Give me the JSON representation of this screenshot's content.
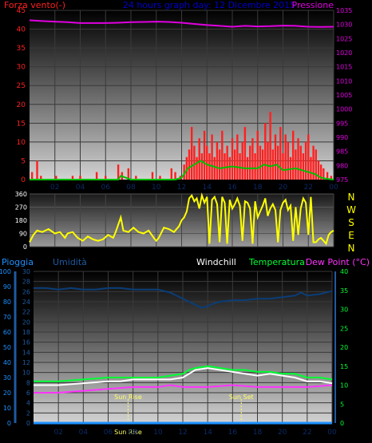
{
  "colors": {
    "wind": "#ff2020",
    "gust_line": "#00c000",
    "pressure": "#e000e0",
    "title": "#0000cc",
    "direction": "#ffff00",
    "rain": "#1e90ff",
    "humidity": "#0a3d78",
    "windchill": "#ffffff",
    "temperature": "#00ff33",
    "dewpoint": "#ff33ff",
    "sun": "#ffff66",
    "axis_text_left_top": "#ff2020",
    "axis_text_right_top": "#e000e0",
    "axis_text_left_bottom": "#1e90ff",
    "axis_text_left_bottom2": "#1e5aa0",
    "axis_text_right_bottom": "#00ff33"
  },
  "chart_data": [
    {
      "type": "line",
      "title": "24 hours graph day: 12 Dicembre 2015",
      "left_label": "Forza vento(-)",
      "right_label": "Pressione",
      "x_ticks": [
        "02",
        "04",
        "06",
        "08",
        "10",
        "12",
        "14",
        "16",
        "18",
        "20",
        "22",
        "00"
      ],
      "y_left_ticks": [
        "0",
        "5",
        "10",
        "15",
        "20",
        "25",
        "30",
        "35",
        "40",
        "45"
      ],
      "y_left_lim": [
        0,
        45
      ],
      "y_right_ticks": [
        "975",
        "980",
        "985",
        "990",
        "995",
        "1000",
        "1005",
        "1010",
        "1015",
        "1020",
        "1025",
        "1030",
        "1035"
      ],
      "y_right_lim": [
        975,
        1035
      ],
      "x_lim": [
        0,
        24
      ],
      "series": [
        {
          "kind": "bars",
          "color_key": "wind",
          "x": [
            0.2,
            0.6,
            0.9,
            1.6,
            2.1,
            2.8,
            3.4,
            4.0,
            4.7,
            5.3,
            6.0,
            6.7,
            7.0,
            7.3,
            7.8,
            8.4,
            9.0,
            9.7,
            10.3,
            10.9,
            11.2,
            11.5,
            11.9,
            12.2,
            12.4,
            12.6,
            12.8,
            13.0,
            13.2,
            13.4,
            13.6,
            13.8,
            14.0,
            14.2,
            14.4,
            14.6,
            14.8,
            15.0,
            15.2,
            15.4,
            15.6,
            15.8,
            16.0,
            16.2,
            16.4,
            16.6,
            16.8,
            17.0,
            17.2,
            17.4,
            17.6,
            17.8,
            18.0,
            18.2,
            18.4,
            18.6,
            18.8,
            19.0,
            19.2,
            19.4,
            19.6,
            19.8,
            20.0,
            20.2,
            20.4,
            20.6,
            20.8,
            21.0,
            21.2,
            21.4,
            21.6,
            21.8,
            22.0,
            22.2,
            22.4,
            22.6,
            22.8,
            23.0,
            23.2,
            23.5,
            23.8
          ],
          "values": [
            2,
            5,
            1,
            0,
            1,
            0,
            1,
            1,
            0,
            2,
            1,
            0,
            4,
            2,
            3,
            1,
            0,
            2,
            1,
            0,
            3,
            2,
            1,
            4,
            6,
            8,
            14,
            9,
            6,
            11,
            7,
            13,
            9,
            7,
            12,
            6,
            10,
            8,
            13,
            7,
            9,
            6,
            11,
            8,
            12,
            7,
            10,
            14,
            6,
            9,
            11,
            7,
            13,
            9,
            8,
            15,
            10,
            18,
            8,
            12,
            9,
            14,
            7,
            12,
            10,
            6,
            13,
            8,
            11,
            9,
            7,
            10,
            12,
            6,
            9,
            8,
            5,
            4,
            3,
            2,
            1
          ]
        },
        {
          "kind": "line",
          "color_key": "gust_line",
          "x": [
            0,
            2,
            4,
            6,
            7,
            7.2,
            8,
            10,
            11,
            11.5,
            12,
            12.5,
            13,
            13.5,
            14,
            14.5,
            15,
            16,
            17,
            18,
            18.5,
            19,
            19.5,
            20,
            21,
            22,
            22.5,
            23,
            23.5,
            24
          ],
          "values": [
            0,
            0,
            0,
            0,
            0,
            1,
            0,
            0,
            0,
            0,
            0.5,
            3,
            4,
            5,
            4,
            3.5,
            3,
            3.5,
            3,
            3,
            4,
            3.5,
            4,
            2.5,
            3,
            2,
            1.5,
            0.5,
            0.2,
            0
          ]
        },
        {
          "kind": "line",
          "axis": "right",
          "color_key": "pressure",
          "x": [
            0,
            1,
            2,
            3,
            4,
            5,
            6,
            7,
            8,
            9,
            10,
            11,
            12,
            13,
            14,
            15,
            16,
            17,
            18,
            19,
            20,
            21,
            22,
            23,
            24
          ],
          "values": [
            1031.5,
            1031.2,
            1031,
            1030.8,
            1030.5,
            1030.5,
            1030.5,
            1030.6,
            1030.8,
            1030.9,
            1031,
            1030.9,
            1030.6,
            1030.2,
            1029.8,
            1029.5,
            1029.2,
            1029.5,
            1029.3,
            1029.4,
            1029.6,
            1029.5,
            1029.2,
            1029.1,
            1029.2
          ]
        }
      ]
    },
    {
      "type": "line",
      "title": "",
      "x_ticks": [],
      "y_left_ticks": [
        "0",
        "90",
        "180",
        "270",
        "360"
      ],
      "y_left_lim": [
        0,
        360
      ],
      "right_letters": [
        "N",
        "W",
        "S",
        "E",
        "N"
      ],
      "x_lim": [
        0,
        24
      ],
      "series": [
        {
          "kind": "line",
          "color_key": "direction",
          "x": [
            0,
            0.3,
            0.6,
            1,
            1.5,
            2,
            2.4,
            2.8,
            3,
            3.4,
            3.8,
            4.2,
            4.6,
            5,
            5.4,
            5.8,
            6.2,
            6.6,
            6.8,
            7,
            7.2,
            7.4,
            7.8,
            8.2,
            8.6,
            9,
            9.4,
            9.8,
            10,
            10.2,
            10.6,
            11,
            11.4,
            11.8,
            12,
            12.2,
            12.4,
            12.6,
            12.8,
            13,
            13.2,
            13.4,
            13.6,
            13.8,
            14,
            14.2,
            14.4,
            14.6,
            14.8,
            15,
            15.2,
            15.4,
            15.6,
            15.8,
            16,
            16.2,
            16.4,
            16.6,
            16.8,
            17,
            17.2,
            17.4,
            17.6,
            17.8,
            18,
            18.2,
            18.4,
            18.6,
            18.8,
            19,
            19.2,
            19.4,
            19.6,
            19.8,
            20,
            20.2,
            20.4,
            20.6,
            20.8,
            21,
            21.2,
            21.4,
            21.6,
            21.8,
            22,
            22.2,
            22.4,
            22.6,
            22.8,
            23,
            23.2,
            23.4,
            23.6,
            23.8,
            24
          ],
          "values": [
            30,
            80,
            110,
            100,
            120,
            90,
            100,
            60,
            90,
            100,
            60,
            40,
            70,
            50,
            40,
            50,
            80,
            60,
            100,
            150,
            200,
            110,
            100,
            130,
            100,
            90,
            110,
            60,
            40,
            60,
            130,
            120,
            100,
            140,
            180,
            200,
            240,
            330,
            350,
            310,
            330,
            260,
            350,
            300,
            340,
            20,
            320,
            340,
            290,
            30,
            340,
            300,
            20,
            320,
            260,
            290,
            330,
            280,
            40,
            310,
            300,
            260,
            20,
            310,
            200,
            240,
            280,
            330,
            210,
            260,
            290,
            250,
            30,
            250,
            300,
            320,
            250,
            280,
            40,
            270,
            80,
            260,
            330,
            300,
            80,
            340,
            30,
            30,
            50,
            60,
            40,
            20,
            80,
            100,
            110
          ]
        }
      ]
    },
    {
      "type": "line",
      "title": "",
      "legend": [
        "Pioggia",
        "Umidità",
        "Windchill",
        "Temperatura",
        "Dew Point (°C)"
      ],
      "x_ticks": [
        "02",
        "04",
        "06",
        "08",
        "10",
        "12",
        "14",
        "16",
        "18",
        "20",
        "22",
        "00"
      ],
      "y_left_ticks": [
        "0",
        "10",
        "20",
        "30",
        "40",
        "50",
        "60",
        "70",
        "80",
        "90",
        "100"
      ],
      "y_left_lim": [
        0,
        100
      ],
      "y_left2_ticks": [
        "0",
        "2",
        "4",
        "6",
        "8",
        "10",
        "12",
        "14",
        "16",
        "18",
        "20",
        "22",
        "24",
        "26",
        "28",
        "30"
      ],
      "y_left2_lim": [
        0,
        30
      ],
      "y_right_ticks": [
        "0",
        "5",
        "10",
        "15",
        "20",
        "25",
        "30",
        "35",
        "40"
      ],
      "y_right_lim": [
        0,
        40
      ],
      "x_lim": [
        0,
        24
      ],
      "annotations": [
        {
          "label": "Sun Rise",
          "x": 7.6
        },
        {
          "label": "Sun Set",
          "x": 16.7
        }
      ],
      "time_marker": "Sun Rise",
      "series": [
        {
          "kind": "line",
          "color_key": "rain",
          "axis": "left2",
          "x": [
            0,
            24
          ],
          "values": [
            0,
            0
          ]
        },
        {
          "kind": "line",
          "color_key": "humidity",
          "axis": "left",
          "x": [
            0,
            1,
            2,
            3,
            4,
            5,
            6,
            7,
            8,
            9,
            10,
            11,
            11.5,
            12,
            12.5,
            13,
            13.5,
            14,
            14.5,
            15,
            16,
            17,
            18,
            19,
            20,
            21,
            21.5,
            22,
            23,
            24
          ],
          "values": [
            89,
            89,
            88,
            89,
            88,
            88,
            89,
            89,
            88,
            88,
            88,
            86,
            84,
            82,
            80,
            78,
            76,
            77,
            79,
            80,
            81,
            81,
            82,
            82,
            83,
            84,
            86,
            84,
            85,
            87
          ]
        },
        {
          "kind": "line",
          "color_key": "windchill",
          "axis": "right",
          "x": [
            0,
            2,
            4,
            6,
            7,
            8,
            10,
            11,
            12,
            12.5,
            13,
            14,
            15,
            16,
            17,
            18,
            19,
            20,
            21,
            22,
            23,
            24
          ],
          "values": [
            10,
            10,
            10.5,
            11,
            11,
            11.5,
            11.5,
            11.5,
            12,
            13,
            14,
            14.5,
            14,
            13.5,
            13,
            12.5,
            13,
            12.5,
            12,
            11,
            11,
            10.5
          ]
        },
        {
          "kind": "line",
          "color_key": "temperature",
          "axis": "right",
          "x": [
            0,
            2,
            4,
            6,
            7,
            8,
            10,
            11,
            12,
            12.5,
            13,
            14,
            15,
            16,
            17,
            18,
            19,
            20,
            21,
            22,
            23,
            24
          ],
          "values": [
            11,
            11,
            11.5,
            12,
            12,
            12,
            12,
            12.5,
            13,
            14,
            14.5,
            15,
            14.5,
            14,
            14,
            13.5,
            13.5,
            13,
            13,
            12,
            12,
            11.5
          ]
        },
        {
          "kind": "line",
          "color_key": "dewpoint",
          "axis": "right",
          "x": [
            0,
            2,
            4,
            6,
            8,
            10,
            11,
            12,
            14,
            16,
            18,
            20,
            22,
            24
          ],
          "values": [
            8,
            8,
            8.5,
            9,
            9.5,
            9.5,
            10,
            9.5,
            9.5,
            10,
            9.5,
            9.5,
            9.5,
            10
          ]
        }
      ]
    }
  ]
}
